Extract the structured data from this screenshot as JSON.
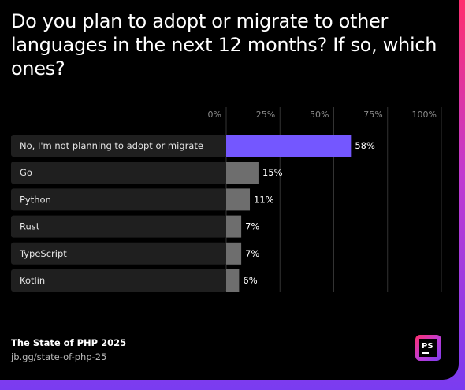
{
  "title": "Do you plan to adopt or migrate to other languages in the next 12 months? If so, which ones?",
  "chart_data": {
    "type": "bar",
    "orientation": "horizontal",
    "categories": [
      "No, I'm not planning to adopt or migrate",
      "Go",
      "Python",
      "Rust",
      "TypeScript",
      "Kotlin"
    ],
    "values": [
      58,
      15,
      11,
      7,
      7,
      6
    ],
    "value_labels": [
      "58%",
      "15%",
      "11%",
      "7%",
      "7%",
      "6%"
    ],
    "tick_labels": [
      "0%",
      "25%",
      "50%",
      "75%",
      "100%"
    ],
    "ticks": [
      0,
      25,
      50,
      75,
      100
    ],
    "xlim": [
      0,
      100
    ],
    "grid": true,
    "highlight_color": "#7457ff",
    "bar_color": "#6e6e6e",
    "label_bg_color": "#1f1f1f"
  },
  "footer": {
    "source_title": "The State of PHP 2025",
    "source_link": "jb.gg/state-of-php-25"
  },
  "logo": {
    "text": "PS",
    "icon": "phpstorm-logo-icon"
  }
}
